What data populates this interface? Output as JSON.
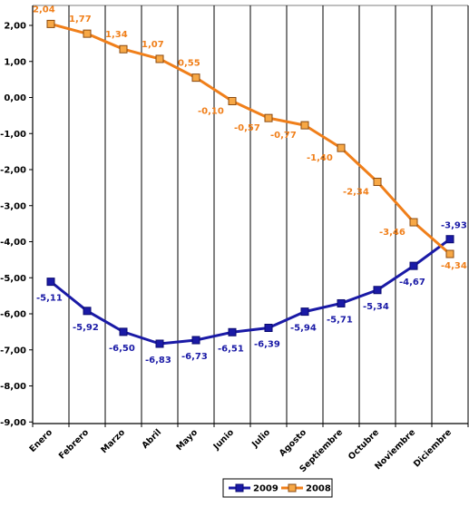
{
  "chart_data": {
    "type": "line",
    "categories": [
      "Enero",
      "Febrero",
      "Marzo",
      "Abril",
      "Mayo",
      "Junio",
      "Julio",
      "Agosto",
      "Septiembre",
      "Octubre",
      "Noviembre",
      "Diciembre"
    ],
    "series": [
      {
        "name": "2009",
        "color": "#1a1aa6",
        "values": [
          -5.11,
          -5.92,
          -6.5,
          -6.83,
          -6.73,
          -6.51,
          -6.39,
          -5.94,
          -5.71,
          -5.34,
          -4.67,
          -3.93
        ],
        "labels": [
          "-5,11",
          "-5,92",
          "-6,50",
          "-6,83",
          "-6,73",
          "-6,51",
          "-6,39",
          "-5,94",
          "-5,71",
          "-5,34",
          "-4,67",
          "-3,93"
        ]
      },
      {
        "name": "2008",
        "color": "#f07f1a",
        "values": [
          2.04,
          1.77,
          1.34,
          1.07,
          0.55,
          -0.1,
          -0.57,
          -0.77,
          -1.4,
          -2.34,
          -3.46,
          -4.34
        ],
        "labels": [
          "2,04",
          "1,77",
          "1,34",
          "1,07",
          "0,55",
          "-0,10",
          "-0,57",
          "-0,77",
          "-1,40",
          "-2,34",
          "-3,46",
          "-4,34"
        ]
      }
    ],
    "ylim": [
      -9,
      2.5
    ],
    "yticks": [
      2,
      1,
      0,
      -1,
      -2,
      -3,
      -4,
      -5,
      -6,
      -7,
      -8,
      -9
    ],
    "ytick_labels": [
      "2,00",
      "1,00",
      "0,00",
      "-1,00",
      "-2,00",
      "-3,00",
      "-4,00",
      "-5,00",
      "-6,00",
      "-7,00",
      "-8,00",
      "-9,00"
    ],
    "title": "",
    "xlabel": "",
    "ylabel": "",
    "legend_position": "bottom-center",
    "vertical_grid": true,
    "horizontal_grid": false
  }
}
